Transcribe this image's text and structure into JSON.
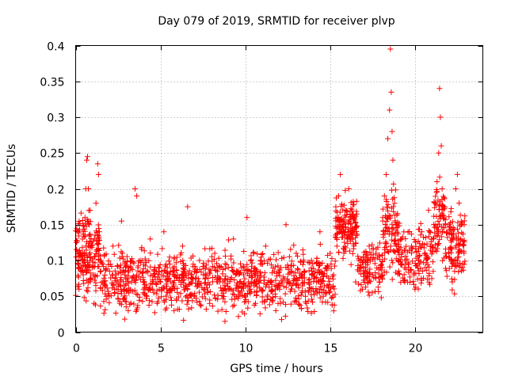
{
  "chart_data": {
    "type": "scatter",
    "title": "Day 079 of 2019, SRMTID for receiver plvp",
    "xlabel": "GPS time / hours",
    "ylabel": "SRMTID / TECUs",
    "xlim": [
      0,
      24
    ],
    "ylim": [
      0,
      0.4
    ],
    "x_ticks": [
      0,
      5,
      10,
      15,
      20
    ],
    "x_tick_labels": [
      "0",
      "5",
      "10",
      "15",
      "20"
    ],
    "y_ticks": [
      0,
      0.05,
      0.1,
      0.15,
      0.2,
      0.25,
      0.3,
      0.35,
      0.4
    ],
    "y_tick_labels": [
      "0",
      "0.05",
      "0.1",
      "0.15",
      "0.2",
      "0.25",
      "0.3",
      "0.35",
      "0.4"
    ],
    "grid": true,
    "marker": "+",
    "color": "#ff0000",
    "series": [
      {
        "name": "SRMTID",
        "points": [
          [
            0.05,
            0.125
          ],
          [
            0.15,
            0.09
          ],
          [
            0.2,
            0.06
          ],
          [
            0.3,
            0.11
          ],
          [
            0.4,
            0.13
          ],
          [
            0.45,
            0.08
          ],
          [
            0.55,
            0.16
          ],
          [
            0.6,
            0.2
          ],
          [
            0.65,
            0.24
          ],
          [
            0.7,
            0.245
          ],
          [
            0.75,
            0.2
          ],
          [
            0.8,
            0.15
          ],
          [
            0.85,
            0.17
          ],
          [
            0.9,
            0.12
          ],
          [
            1.0,
            0.09
          ],
          [
            1.1,
            0.13
          ],
          [
            1.2,
            0.18
          ],
          [
            1.3,
            0.235
          ],
          [
            1.35,
            0.22
          ],
          [
            1.4,
            0.14
          ],
          [
            1.5,
            0.1
          ],
          [
            1.6,
            0.07
          ],
          [
            1.8,
            0.05
          ],
          [
            2.0,
            0.085
          ],
          [
            2.2,
            0.12
          ],
          [
            2.4,
            0.06
          ],
          [
            2.6,
            0.04
          ],
          [
            2.7,
            0.155
          ],
          [
            2.9,
            0.08
          ],
          [
            3.1,
            0.03
          ],
          [
            3.3,
            0.07
          ],
          [
            3.5,
            0.2
          ],
          [
            3.6,
            0.19
          ],
          [
            3.8,
            0.1
          ],
          [
            4.0,
            0.06
          ],
          [
            4.2,
            0.05
          ],
          [
            4.4,
            0.13
          ],
          [
            4.6,
            0.08
          ],
          [
            4.8,
            0.04
          ],
          [
            5.0,
            0.07
          ],
          [
            5.2,
            0.14
          ],
          [
            5.4,
            0.09
          ],
          [
            5.6,
            0.06
          ],
          [
            5.8,
            0.03
          ],
          [
            6.0,
            0.08
          ],
          [
            6.3,
            0.12
          ],
          [
            6.6,
            0.175
          ],
          [
            6.8,
            0.07
          ],
          [
            7.0,
            0.05
          ],
          [
            7.3,
            0.1
          ],
          [
            7.6,
            0.06
          ],
          [
            7.9,
            0.04
          ],
          [
            8.2,
            0.11
          ],
          [
            8.5,
            0.07
          ],
          [
            8.8,
            0.015
          ],
          [
            9.0,
            0.09
          ],
          [
            9.3,
            0.13
          ],
          [
            9.6,
            0.05
          ],
          [
            9.9,
            0.08
          ],
          [
            10.1,
            0.16
          ],
          [
            10.3,
            0.06
          ],
          [
            10.6,
            0.04
          ],
          [
            10.9,
            0.1
          ],
          [
            11.2,
            0.12
          ],
          [
            11.5,
            0.07
          ],
          [
            11.8,
            0.03
          ],
          [
            12.1,
            0.09
          ],
          [
            12.4,
            0.15
          ],
          [
            12.7,
            0.06
          ],
          [
            13.0,
            0.11
          ],
          [
            13.3,
            0.08
          ],
          [
            13.6,
            0.04
          ],
          [
            13.9,
            0.1
          ],
          [
            14.2,
            0.07
          ],
          [
            14.4,
            0.14
          ],
          [
            14.6,
            0.05
          ],
          [
            14.8,
            0.09
          ],
          [
            15.0,
            0.11
          ],
          [
            15.2,
            0.08
          ],
          [
            15.4,
            0.12
          ],
          [
            15.5,
            0.19
          ],
          [
            15.6,
            0.22
          ],
          [
            15.7,
            0.155
          ],
          [
            15.8,
            0.14
          ],
          [
            15.9,
            0.17
          ],
          [
            16.0,
            0.13
          ],
          [
            16.1,
            0.2
          ],
          [
            16.2,
            0.16
          ],
          [
            16.3,
            0.145
          ],
          [
            16.4,
            0.12
          ],
          [
            16.5,
            0.07
          ],
          [
            16.7,
            0.1
          ],
          [
            16.9,
            0.06
          ],
          [
            17.1,
            0.09
          ],
          [
            17.3,
            0.12
          ],
          [
            17.5,
            0.08
          ],
          [
            17.7,
            0.11
          ],
          [
            17.9,
            0.07
          ],
          [
            18.1,
            0.16
          ],
          [
            18.2,
            0.19
          ],
          [
            18.3,
            0.22
          ],
          [
            18.4,
            0.27
          ],
          [
            18.5,
            0.31
          ],
          [
            18.55,
            0.395
          ],
          [
            18.6,
            0.335
          ],
          [
            18.65,
            0.28
          ],
          [
            18.7,
            0.24
          ],
          [
            18.8,
            0.18
          ],
          [
            19.0,
            0.1
          ],
          [
            19.2,
            0.13
          ],
          [
            19.4,
            0.07
          ],
          [
            19.6,
            0.09
          ],
          [
            19.8,
            0.12
          ],
          [
            20.0,
            0.06
          ],
          [
            20.2,
            0.1
          ],
          [
            20.4,
            0.14
          ],
          [
            20.6,
            0.09
          ],
          [
            20.8,
            0.17
          ],
          [
            21.0,
            0.12
          ],
          [
            21.2,
            0.18
          ],
          [
            21.3,
            0.21
          ],
          [
            21.4,
            0.25
          ],
          [
            21.45,
            0.34
          ],
          [
            21.5,
            0.3
          ],
          [
            21.55,
            0.26
          ],
          [
            21.6,
            0.2
          ],
          [
            21.8,
            0.15
          ],
          [
            22.0,
            0.11
          ],
          [
            22.2,
            0.07
          ],
          [
            22.3,
            0.1
          ],
          [
            22.4,
            0.2
          ],
          [
            22.5,
            0.22
          ],
          [
            22.6,
            0.18
          ],
          [
            22.7,
            0.13
          ],
          [
            22.8,
            0.09
          ],
          [
            22.9,
            0.15
          ]
        ]
      }
    ]
  },
  "background_density": {
    "baseline_segments": [
      {
        "from": 0,
        "to": 1.4,
        "mean": 0.105,
        "spread": 0.05,
        "count": 170
      },
      {
        "from": 1.4,
        "to": 15.3,
        "mean": 0.072,
        "spread": 0.035,
        "count": 950
      },
      {
        "from": 15.3,
        "to": 16.6,
        "mean": 0.145,
        "spread": 0.035,
        "count": 140
      },
      {
        "from": 16.6,
        "to": 18.1,
        "mean": 0.09,
        "spread": 0.035,
        "count": 110
      },
      {
        "from": 18.1,
        "to": 19.0,
        "mean": 0.14,
        "spread": 0.06,
        "count": 90
      },
      {
        "from": 19.0,
        "to": 21.1,
        "mean": 0.105,
        "spread": 0.04,
        "count": 150
      },
      {
        "from": 21.1,
        "to": 21.8,
        "mean": 0.16,
        "spread": 0.05,
        "count": 70
      },
      {
        "from": 21.8,
        "to": 22.95,
        "mean": 0.12,
        "spread": 0.045,
        "count": 110
      }
    ]
  }
}
